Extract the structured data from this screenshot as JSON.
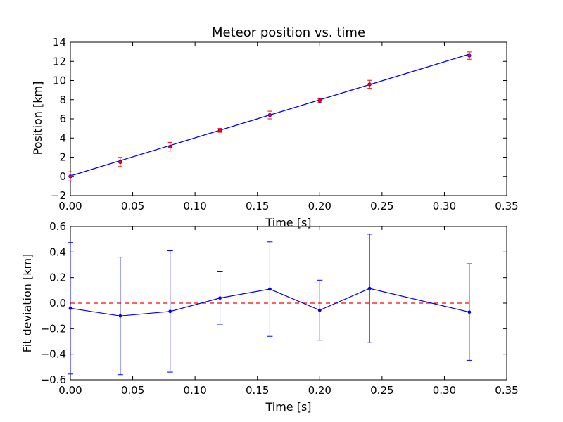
{
  "chart_data": [
    {
      "type": "line",
      "title": "Meteor position vs. time",
      "xlabel": "Time [s]",
      "ylabel": "Position [km]",
      "xlim": [
        0.0,
        0.35
      ],
      "ylim": [
        -2,
        14
      ],
      "xticks": [
        "0.00",
        "0.05",
        "0.10",
        "0.15",
        "0.20",
        "0.25",
        "0.30",
        "0.35"
      ],
      "yticks": [
        "−2",
        "0",
        "2",
        "4",
        "6",
        "8",
        "10",
        "12",
        "14"
      ],
      "xtick_values": [
        0.0,
        0.05,
        0.1,
        0.15,
        0.2,
        0.25,
        0.3,
        0.35
      ],
      "ytick_values": [
        -2,
        0,
        2,
        4,
        6,
        8,
        10,
        12,
        14
      ],
      "series": [
        {
          "kind": "fit-line",
          "color": "#0000ff",
          "x": [
            0.0,
            0.32
          ],
          "y": [
            0.05,
            12.75
          ]
        },
        {
          "kind": "points-with-errorbars",
          "color": "#ff0000",
          "x": [
            0.0,
            0.04,
            0.08,
            0.12,
            0.16,
            0.2,
            0.24,
            0.32
          ],
          "y": [
            0.0,
            1.5,
            3.1,
            4.8,
            6.4,
            7.9,
            9.6,
            12.6
          ],
          "yerr": [
            0.48,
            0.48,
            0.45,
            0.2,
            0.4,
            0.2,
            0.42,
            0.38
          ]
        }
      ],
      "grid": false
    },
    {
      "type": "line",
      "title": "",
      "xlabel": "Time [s]",
      "ylabel": "Fit deviation [km]",
      "xlim": [
        0.0,
        0.35
      ],
      "ylim": [
        -0.6,
        0.6
      ],
      "xticks": [
        "0.00",
        "0.05",
        "0.10",
        "0.15",
        "0.20",
        "0.25",
        "0.30",
        "0.35"
      ],
      "yticks": [
        "−0.6",
        "−0.4",
        "−0.2",
        "0.0",
        "0.2",
        "0.4",
        "0.6"
      ],
      "xtick_values": [
        0.0,
        0.05,
        0.1,
        0.15,
        0.2,
        0.25,
        0.3,
        0.35
      ],
      "ytick_values": [
        -0.6,
        -0.4,
        -0.2,
        0.0,
        0.2,
        0.4,
        0.6
      ],
      "series": [
        {
          "kind": "zero-reference",
          "color": "#ff0000",
          "dashed": true,
          "x": [
            0.0,
            0.32
          ],
          "y": [
            0.0,
            0.0
          ]
        },
        {
          "kind": "line-with-errorbars",
          "color": "#0000ff",
          "x": [
            0.0,
            0.04,
            0.08,
            0.12,
            0.16,
            0.2,
            0.24,
            0.32
          ],
          "y": [
            -0.04,
            -0.1,
            -0.065,
            0.04,
            0.11,
            -0.055,
            0.115,
            -0.07
          ],
          "yerr": [
            0.515,
            0.46,
            0.475,
            0.205,
            0.37,
            0.235,
            0.425,
            0.378
          ]
        }
      ],
      "grid": false
    }
  ]
}
